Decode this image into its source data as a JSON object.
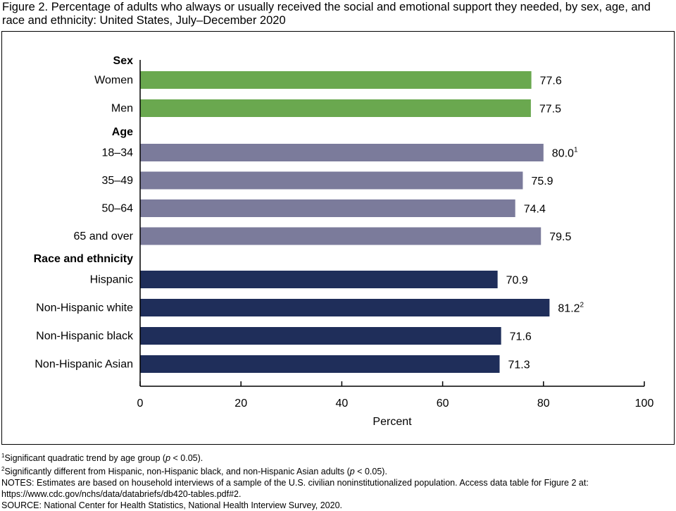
{
  "title": "Figure 2. Percentage of adults who always or usually received the social and emotional support they needed, by sex, age, and race and ethnicity: United States, July–December 2020",
  "colors": {
    "sex": "#6aa84f",
    "age": "#7b7b9b",
    "race": "#1f2e5a"
  },
  "chart_data": {
    "type": "bar",
    "orientation": "horizontal",
    "xlabel": "Percent",
    "xlim": [
      0,
      100
    ],
    "xticks": [
      0,
      20,
      40,
      60,
      80,
      100
    ],
    "grid": false,
    "groups": [
      {
        "label": "Sex",
        "color_key": "sex",
        "bars": [
          {
            "label": "Women",
            "value": 77.6,
            "value_text": "77.6",
            "superscript": ""
          },
          {
            "label": "Men",
            "value": 77.5,
            "value_text": "77.5",
            "superscript": ""
          }
        ]
      },
      {
        "label": "Age",
        "color_key": "age",
        "bars": [
          {
            "label": "18–34",
            "value": 80.0,
            "value_text": "80.0",
            "superscript": "1"
          },
          {
            "label": "35–49",
            "value": 75.9,
            "value_text": "75.9",
            "superscript": ""
          },
          {
            "label": "50–64",
            "value": 74.4,
            "value_text": "74.4",
            "superscript": ""
          },
          {
            "label": "65 and over",
            "value": 79.5,
            "value_text": "79.5",
            "superscript": ""
          }
        ]
      },
      {
        "label": "Race and ethnicity",
        "color_key": "race",
        "bars": [
          {
            "label": "Hispanic",
            "value": 70.9,
            "value_text": "70.9",
            "superscript": ""
          },
          {
            "label": "Non-Hispanic white",
            "value": 81.2,
            "value_text": "81.2",
            "superscript": "2"
          },
          {
            "label": "Non-Hispanic black",
            "value": 71.6,
            "value_text": "71.6",
            "superscript": ""
          },
          {
            "label": "Non-Hispanic Asian",
            "value": 71.3,
            "value_text": "71.3",
            "superscript": ""
          }
        ]
      }
    ]
  },
  "footnotes": {
    "note1": {
      "sup": "1",
      "text_a": "Significant quadratic trend by age group (",
      "p": "p",
      "text_b": " < 0.05)."
    },
    "note2": {
      "sup": "2",
      "text_a": "Significantly different from Hispanic, non-Hispanic black, and non-Hispanic Asian adults (",
      "p": "p",
      "text_b": " < 0.05)."
    },
    "notes_line1": "NOTES: Estimates are based on household interviews of a sample of the U.S. civilian noninstitutionalized population. Access data table for Figure 2 at:",
    "notes_line2": "https://www.cdc.gov/nchs/data/databriefs/db420-tables.pdf#2.",
    "source": "SOURCE: National Center for Health Statistics, National Health Interview Survey, 2020."
  }
}
